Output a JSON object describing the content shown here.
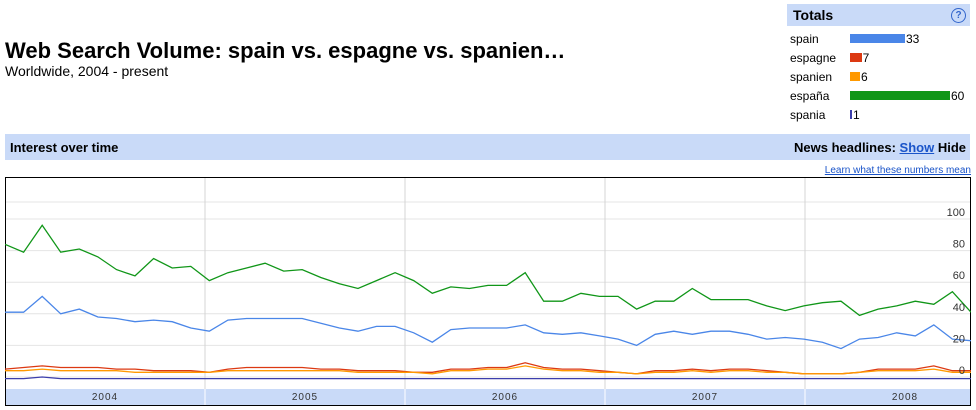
{
  "header": {
    "title": "Web Search Volume: spain vs. espagne vs. spanien…",
    "subtitle": "Worldwide, 2004 - present"
  },
  "totals": {
    "title": "Totals",
    "help": "?",
    "rows": [
      {
        "label": "spain",
        "value": 33,
        "color": "#4a86e8"
      },
      {
        "label": "espagne",
        "value": 7,
        "color": "#dc3912"
      },
      {
        "label": "spanien",
        "value": 6,
        "color": "#ff9900"
      },
      {
        "label": "españa",
        "value": 60,
        "color": "#109618"
      },
      {
        "label": "spania",
        "value": 1,
        "color": "#3b3eac"
      }
    ]
  },
  "section": {
    "title": "Interest over time",
    "news_label": "News headlines:",
    "show": "Show",
    "hide": "Hide"
  },
  "learn_link": "Learn what these numbers mean",
  "chart_data": {
    "type": "line",
    "x": [
      "2004-01",
      "2004-02",
      "2004-03",
      "2004-04",
      "2004-05",
      "2004-06",
      "2004-07",
      "2004-08",
      "2004-09",
      "2004-10",
      "2004-11",
      "2004-12",
      "2005-01",
      "2005-02",
      "2005-03",
      "2005-04",
      "2005-05",
      "2005-06",
      "2005-07",
      "2005-08",
      "2005-09",
      "2005-10",
      "2005-11",
      "2005-12",
      "2006-01",
      "2006-02",
      "2006-03",
      "2006-04",
      "2006-05",
      "2006-06",
      "2006-07",
      "2006-08",
      "2006-09",
      "2006-10",
      "2006-11",
      "2006-12",
      "2007-01",
      "2007-02",
      "2007-03",
      "2007-04",
      "2007-05",
      "2007-06",
      "2007-07",
      "2007-08",
      "2007-09",
      "2007-10",
      "2007-11",
      "2007-12",
      "2008-01",
      "2008-02",
      "2008-03",
      "2008-04",
      "2008-05"
    ],
    "x_ticks": [
      "2004",
      "2005",
      "2006",
      "2007",
      "2008"
    ],
    "ylim": [
      0,
      100
    ],
    "y_ticks": [
      0,
      20,
      40,
      60,
      80,
      100
    ],
    "grid": true,
    "series": [
      {
        "name": "españa",
        "color": "#109618",
        "values": [
          84,
          79,
          96,
          79,
          81,
          76,
          68,
          64,
          75,
          69,
          70,
          61,
          66,
          69,
          72,
          67,
          68,
          63,
          59,
          56,
          61,
          66,
          61,
          53,
          57,
          56,
          58,
          58,
          66,
          48,
          48,
          53,
          51,
          51,
          43,
          48,
          48,
          56,
          49,
          49,
          49,
          45,
          42,
          45,
          47,
          48,
          39,
          43,
          45,
          48,
          46,
          54,
          41
        ]
      },
      {
        "name": "spain",
        "color": "#4a86e8",
        "values": [
          41,
          41,
          51,
          40,
          43,
          38,
          37,
          35,
          36,
          35,
          31,
          29,
          36,
          37,
          37,
          37,
          37,
          34,
          31,
          29,
          32,
          32,
          28,
          22,
          30,
          31,
          31,
          31,
          33,
          28,
          27,
          28,
          26,
          24,
          20,
          27,
          29,
          27,
          29,
          29,
          27,
          24,
          25,
          24,
          22,
          18,
          24,
          25,
          28,
          26,
          33,
          24,
          23
        ]
      },
      {
        "name": "espagne",
        "color": "#dc3912",
        "values": [
          5,
          6,
          7,
          6,
          6,
          6,
          5,
          5,
          4,
          4,
          4,
          3,
          5,
          6,
          6,
          6,
          6,
          5,
          5,
          4,
          4,
          4,
          3,
          3,
          5,
          5,
          6,
          6,
          9,
          6,
          5,
          5,
          4,
          3,
          2,
          4,
          4,
          5,
          4,
          5,
          5,
          4,
          3,
          2,
          2,
          2,
          3,
          5,
          5,
          5,
          7,
          4,
          4
        ]
      },
      {
        "name": "spanien",
        "color": "#ff9900",
        "values": [
          4,
          4,
          5,
          4,
          4,
          4,
          4,
          3,
          3,
          3,
          3,
          3,
          4,
          4,
          4,
          4,
          4,
          4,
          4,
          3,
          3,
          3,
          3,
          2,
          4,
          4,
          5,
          5,
          7,
          5,
          4,
          4,
          3,
          3,
          2,
          3,
          3,
          4,
          3,
          4,
          4,
          3,
          3,
          2,
          2,
          2,
          3,
          4,
          4,
          4,
          5,
          3,
          3
        ]
      },
      {
        "name": "spania",
        "color": "#3b3eac",
        "values": [
          -1,
          -1,
          0,
          -1,
          -1,
          -1,
          -1,
          -1,
          -1,
          -1,
          -1,
          -1,
          -1,
          -1,
          -1,
          -1,
          -1,
          -1,
          -1,
          -1,
          -1,
          -1,
          -1,
          -1,
          -1,
          -1,
          -1,
          -1,
          -1,
          -1,
          -1,
          -1,
          -1,
          -1,
          -1,
          -1,
          -1,
          -1,
          -1,
          -1,
          -1,
          -1,
          -1,
          -1,
          -1,
          -1,
          -1,
          -1,
          -1,
          -1,
          -1,
          -1,
          -1
        ]
      }
    ]
  }
}
